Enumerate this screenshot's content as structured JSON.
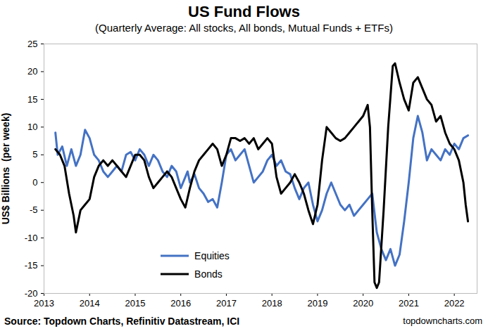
{
  "chart_data": {
    "type": "line",
    "title": "US Fund Flows",
    "subtitle": "(Quarterly Average: All stocks, All bonds, Mutual Funds + ETFs)",
    "y_label": "US$ Billions  (per week)",
    "source": "Source: Topdown Charts, Refinitiv Datastream, ICI",
    "credit": "topdowncharts.com",
    "xlim": [
      2013,
      2022.5
    ],
    "xticks": [
      2013,
      2014,
      2015,
      2016,
      2017,
      2018,
      2019,
      2020,
      2021,
      2022
    ],
    "ylim": [
      -20,
      25
    ],
    "yticks": [
      -20,
      -15,
      -10,
      -5,
      0,
      5,
      10,
      15,
      20,
      25
    ],
    "grid": false,
    "legend": "lower center",
    "series": [
      {
        "name": "Equities",
        "color": "#4472c4",
        "x": [
          2013.25,
          2013.3,
          2013.4,
          2013.5,
          2013.6,
          2013.7,
          2013.8,
          2013.9,
          2014.0,
          2014.1,
          2014.2,
          2014.3,
          2014.4,
          2014.5,
          2014.6,
          2014.7,
          2014.8,
          2014.9,
          2015.0,
          2015.1,
          2015.2,
          2015.3,
          2015.4,
          2015.5,
          2015.6,
          2015.7,
          2015.8,
          2015.9,
          2016.0,
          2016.1,
          2016.15,
          2016.2,
          2016.3,
          2016.4,
          2016.5,
          2016.6,
          2016.7,
          2016.8,
          2016.9,
          2017.0,
          2017.1,
          2017.2,
          2017.3,
          2017.4,
          2017.5,
          2017.6,
          2017.7,
          2017.8,
          2017.9,
          2018.0,
          2018.1,
          2018.2,
          2018.3,
          2018.4,
          2018.5,
          2018.6,
          2018.7,
          2018.8,
          2018.9,
          2019.0,
          2019.1,
          2019.2,
          2019.3,
          2019.4,
          2019.5,
          2019.6,
          2019.7,
          2019.8,
          2019.9,
          2020.0,
          2020.1,
          2020.2,
          2020.3,
          2020.4,
          2020.5,
          2020.6,
          2020.7,
          2020.8,
          2020.9,
          2021.0,
          2021.1,
          2021.2,
          2021.3,
          2021.4,
          2021.5,
          2021.6,
          2021.7,
          2021.8,
          2021.9,
          2022.0,
          2022.1,
          2022.2,
          2022.3
        ],
        "values": [
          9,
          5,
          6.5,
          3,
          6,
          3,
          5,
          9.5,
          8,
          5,
          4,
          2,
          1,
          2,
          3,
          2,
          5,
          5.5,
          4,
          6,
          5,
          3,
          5,
          4,
          2,
          1,
          3,
          2,
          -1,
          1,
          2,
          0,
          1.5,
          -1,
          -2,
          -3.5,
          -3,
          -4.5,
          0,
          5,
          6,
          4,
          5,
          6,
          3,
          0,
          1,
          2,
          4,
          5,
          3,
          4,
          2,
          1.5,
          -1,
          -3,
          -1,
          0,
          -4,
          -7,
          -5,
          -2,
          0,
          -2,
          -4,
          -5,
          -4,
          -6,
          -5,
          -4,
          -3,
          -2,
          -9,
          -12,
          -14,
          -12,
          -15,
          -13,
          -7,
          0,
          8,
          12,
          9,
          4,
          6,
          5,
          4,
          6,
          5,
          7,
          6,
          8,
          8.5
        ]
      },
      {
        "name": "Bonds",
        "color": "#000000",
        "x": [
          2013.25,
          2013.35,
          2013.45,
          2013.55,
          2013.65,
          2013.7,
          2013.8,
          2013.9,
          2014.0,
          2014.1,
          2014.2,
          2014.3,
          2014.4,
          2014.5,
          2014.6,
          2014.7,
          2014.8,
          2014.9,
          2015.0,
          2015.1,
          2015.2,
          2015.3,
          2015.4,
          2015.5,
          2015.6,
          2015.7,
          2015.8,
          2015.9,
          2016.0,
          2016.1,
          2016.2,
          2016.3,
          2016.4,
          2016.5,
          2016.6,
          2016.7,
          2016.8,
          2016.9,
          2017.0,
          2017.1,
          2017.2,
          2017.3,
          2017.4,
          2017.5,
          2017.6,
          2017.7,
          2017.8,
          2017.9,
          2018.0,
          2018.1,
          2018.2,
          2018.3,
          2018.4,
          2018.5,
          2018.6,
          2018.7,
          2018.8,
          2018.9,
          2019.0,
          2019.1,
          2019.2,
          2019.3,
          2019.4,
          2019.5,
          2019.6,
          2019.7,
          2019.8,
          2019.9,
          2020.0,
          2020.1,
          2020.15,
          2020.2,
          2020.25,
          2020.3,
          2020.35,
          2020.45,
          2020.55,
          2020.65,
          2020.7,
          2020.8,
          2020.9,
          2021.0,
          2021.1,
          2021.2,
          2021.3,
          2021.4,
          2021.5,
          2021.6,
          2021.7,
          2021.8,
          2021.9,
          2022.0,
          2022.1,
          2022.2,
          2022.25,
          2022.3
        ],
        "values": [
          6,
          5,
          3,
          -2,
          -6,
          -9,
          -5,
          -4,
          -3,
          1,
          3,
          4,
          3,
          4,
          3,
          2,
          1,
          3,
          5,
          5,
          4,
          1,
          -1,
          0,
          1,
          2,
          1,
          -1,
          -3,
          -4.5,
          -1,
          2,
          4,
          5,
          6,
          7,
          6,
          3,
          5,
          8,
          8,
          7.5,
          8,
          7,
          8,
          6,
          7,
          8,
          7,
          1,
          -2,
          -1,
          0,
          1.5,
          0,
          -2,
          -5,
          -7.5,
          -4,
          4,
          10,
          9,
          8,
          7.5,
          8,
          9,
          10,
          11,
          12,
          14,
          10,
          -5,
          -18,
          -19,
          -18,
          -5,
          10,
          21,
          21.5,
          18,
          15,
          13,
          18,
          19,
          17,
          15,
          14,
          11,
          12,
          9,
          7,
          6,
          4,
          0,
          -4,
          -7
        ]
      }
    ]
  }
}
